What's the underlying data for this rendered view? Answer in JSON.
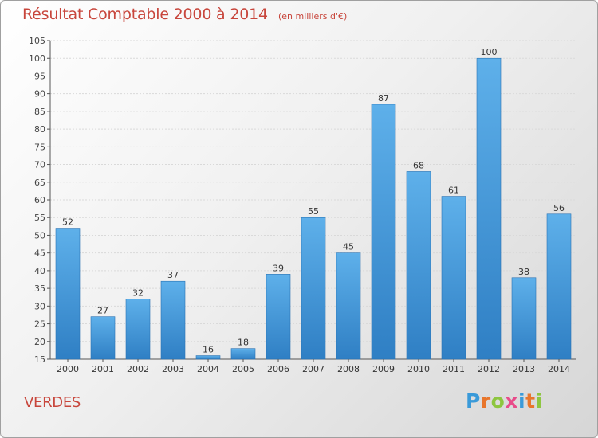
{
  "header": {
    "title": "Résultat Comptable 2000 à 2014",
    "subtitle": "(en milliers d'€)"
  },
  "footer": {
    "commune": "VERDES",
    "logo_text": "Proxiti",
    "logo_colors": [
      "#3a9ad9",
      "#e8762c",
      "#8dc63f",
      "#e84c8a",
      "#3a9ad9",
      "#e8762c",
      "#8dc63f"
    ]
  },
  "colors": {
    "bar_light": "#5eb0ea",
    "bar_dark": "#2f7fc4",
    "title": "#c8463c"
  },
  "chart_data": {
    "type": "bar",
    "title": "Résultat Comptable 2000 à 2014",
    "subtitle": "(en milliers d'€)",
    "categories": [
      "2000",
      "2001",
      "2002",
      "2003",
      "2004",
      "2005",
      "2006",
      "2007",
      "2008",
      "2009",
      "2010",
      "2011",
      "2012",
      "2013",
      "2014"
    ],
    "values": [
      52,
      27,
      32,
      37,
      16,
      18,
      39,
      55,
      45,
      87,
      68,
      61,
      100,
      38,
      56
    ],
    "ylim": [
      15,
      105
    ],
    "yticks": [
      15,
      20,
      25,
      30,
      35,
      40,
      45,
      50,
      55,
      60,
      65,
      70,
      75,
      80,
      85,
      90,
      95,
      100,
      105
    ],
    "grid": true,
    "xlabel": "",
    "ylabel": ""
  }
}
